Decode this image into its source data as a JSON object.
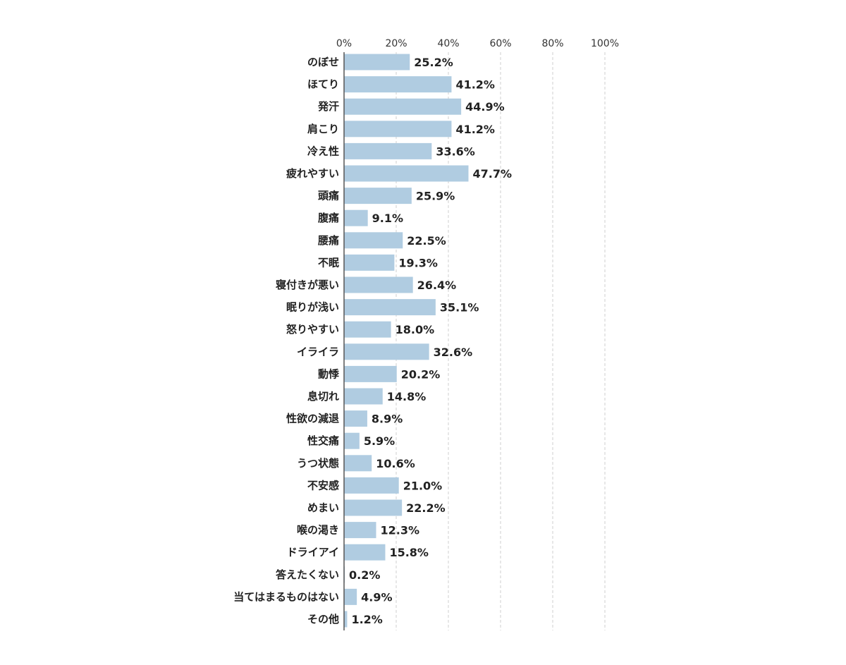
{
  "chart_data": {
    "type": "bar",
    "orientation": "horizontal",
    "title": "",
    "xlabel": "",
    "ylabel": "",
    "xlim": [
      0,
      100
    ],
    "ticks": [
      "0%",
      "20%",
      "40%",
      "60%",
      "80%",
      "100%"
    ],
    "grid": true,
    "legend": "none",
    "bar_color": "#b0cce1",
    "categories": [
      "のぼせ",
      "ほてり",
      "発汗",
      "肩こり",
      "冷え性",
      "疲れやすい",
      "頭痛",
      "腹痛",
      "腰痛",
      "不眠",
      "寝付きが悪い",
      "眠りが浅い",
      "怒りやすい",
      "イライラ",
      "動悸",
      "息切れ",
      "性欲の減退",
      "性交痛",
      "うつ状態",
      "不安感",
      "めまい",
      "喉の渇き",
      "ドライアイ",
      "答えたくない",
      "当てはまるものはない",
      "その他"
    ],
    "values": [
      25.2,
      41.2,
      44.9,
      41.2,
      33.6,
      47.7,
      25.9,
      9.1,
      22.5,
      19.3,
      26.4,
      35.1,
      18.0,
      32.6,
      20.2,
      14.8,
      8.9,
      5.9,
      10.6,
      21.0,
      22.2,
      12.3,
      15.8,
      0.2,
      4.9,
      1.2
    ],
    "value_labels": [
      "25.2%",
      "41.2%",
      "44.9%",
      "41.2%",
      "33.6%",
      "47.7%",
      "25.9%",
      "9.1%",
      "22.5%",
      "19.3%",
      "26.4%",
      "35.1%",
      "18.0%",
      "32.6%",
      "20.2%",
      "14.8%",
      "8.9%",
      "5.9%",
      "10.6%",
      "21.0%",
      "22.2%",
      "12.3%",
      "15.8%",
      "0.2%",
      "4.9%",
      "1.2%"
    ]
  }
}
